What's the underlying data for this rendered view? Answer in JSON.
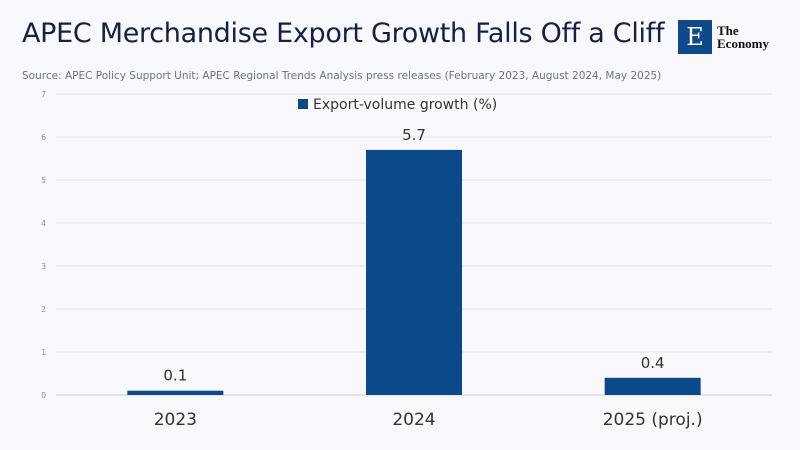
{
  "header": {
    "title": "APEC Merchandise Export Growth Falls Off a Cliff",
    "source": "Source: APEC Policy Support Unit; APEC Regional Trends Analysis press releases (February 2023, August 2024, May 2025)",
    "logo_letter": "E",
    "logo_line1": "The",
    "logo_line2": "Economy"
  },
  "chart_data": {
    "type": "bar",
    "title": "APEC Merchandise Export Growth Falls Off a Cliff",
    "categories": [
      "2023",
      "2024",
      "2025 (proj.)"
    ],
    "series": [
      {
        "name": "Export-volume growth (%)",
        "values": [
          0.1,
          5.7,
          0.4
        ]
      }
    ],
    "data_labels": [
      "0.1",
      "5.7",
      "0.4"
    ],
    "ylim": [
      0,
      7
    ],
    "yticks": [
      "0",
      "1",
      "2",
      "3",
      "4",
      "5",
      "6",
      "7"
    ],
    "grid": true,
    "legend_placement": "top-center",
    "bar_color": "#0b4a8a"
  }
}
